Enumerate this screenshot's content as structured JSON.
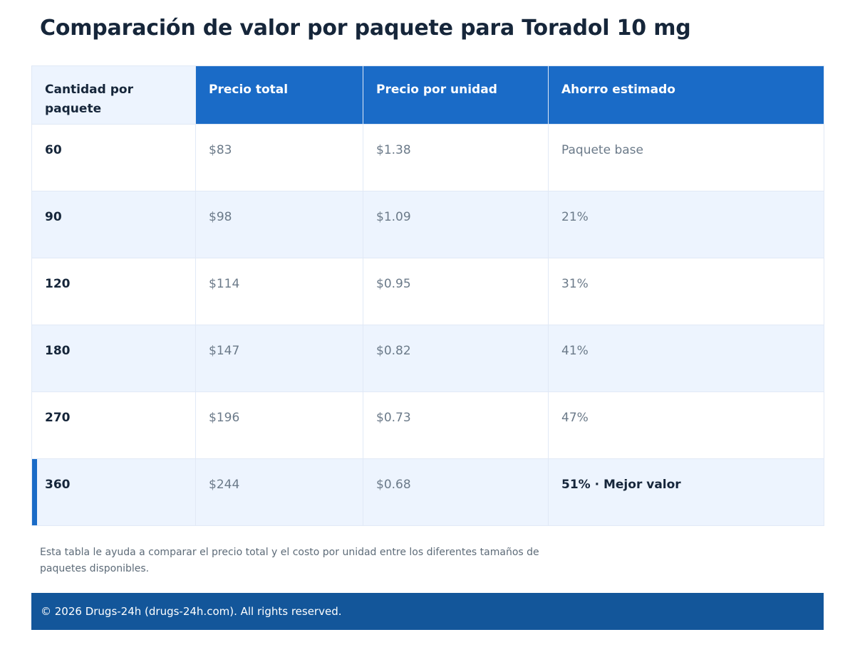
{
  "title": "Comparación de valor por paquete para Toradol 10 mg",
  "table": {
    "headers": [
      "Cantidad por paquete",
      "Precio total",
      "Precio por unidad",
      "Ahorro estimado"
    ],
    "rows": [
      {
        "quantity": "60",
        "total": "$83",
        "unit": "$1.38",
        "saving": "Paquete base"
      },
      {
        "quantity": "90",
        "total": "$98",
        "unit": "$1.09",
        "saving": "21%"
      },
      {
        "quantity": "120",
        "total": "$114",
        "unit": "$0.95",
        "saving": "31%"
      },
      {
        "quantity": "180",
        "total": "$147",
        "unit": "$0.82",
        "saving": "41%"
      },
      {
        "quantity": "270",
        "total": "$196",
        "unit": "$0.73",
        "saving": "47%"
      },
      {
        "quantity": "360",
        "total": "$244",
        "unit": "$0.68",
        "saving": "51% · Mejor valor"
      }
    ],
    "highlighted_row": 5
  },
  "note": "Esta tabla le ayuda a comparar el precio total y el costo por unidad entre los diferentes tamaños de paquetes disponibles.",
  "footer": "© 2026 Drugs-24h (drugs-24h.com). All rights reserved.",
  "colors": {
    "accent": "#1a6bc7",
    "title": "#16263a",
    "row_alt": "#edf4fe",
    "footer_bg": "#13569a"
  }
}
